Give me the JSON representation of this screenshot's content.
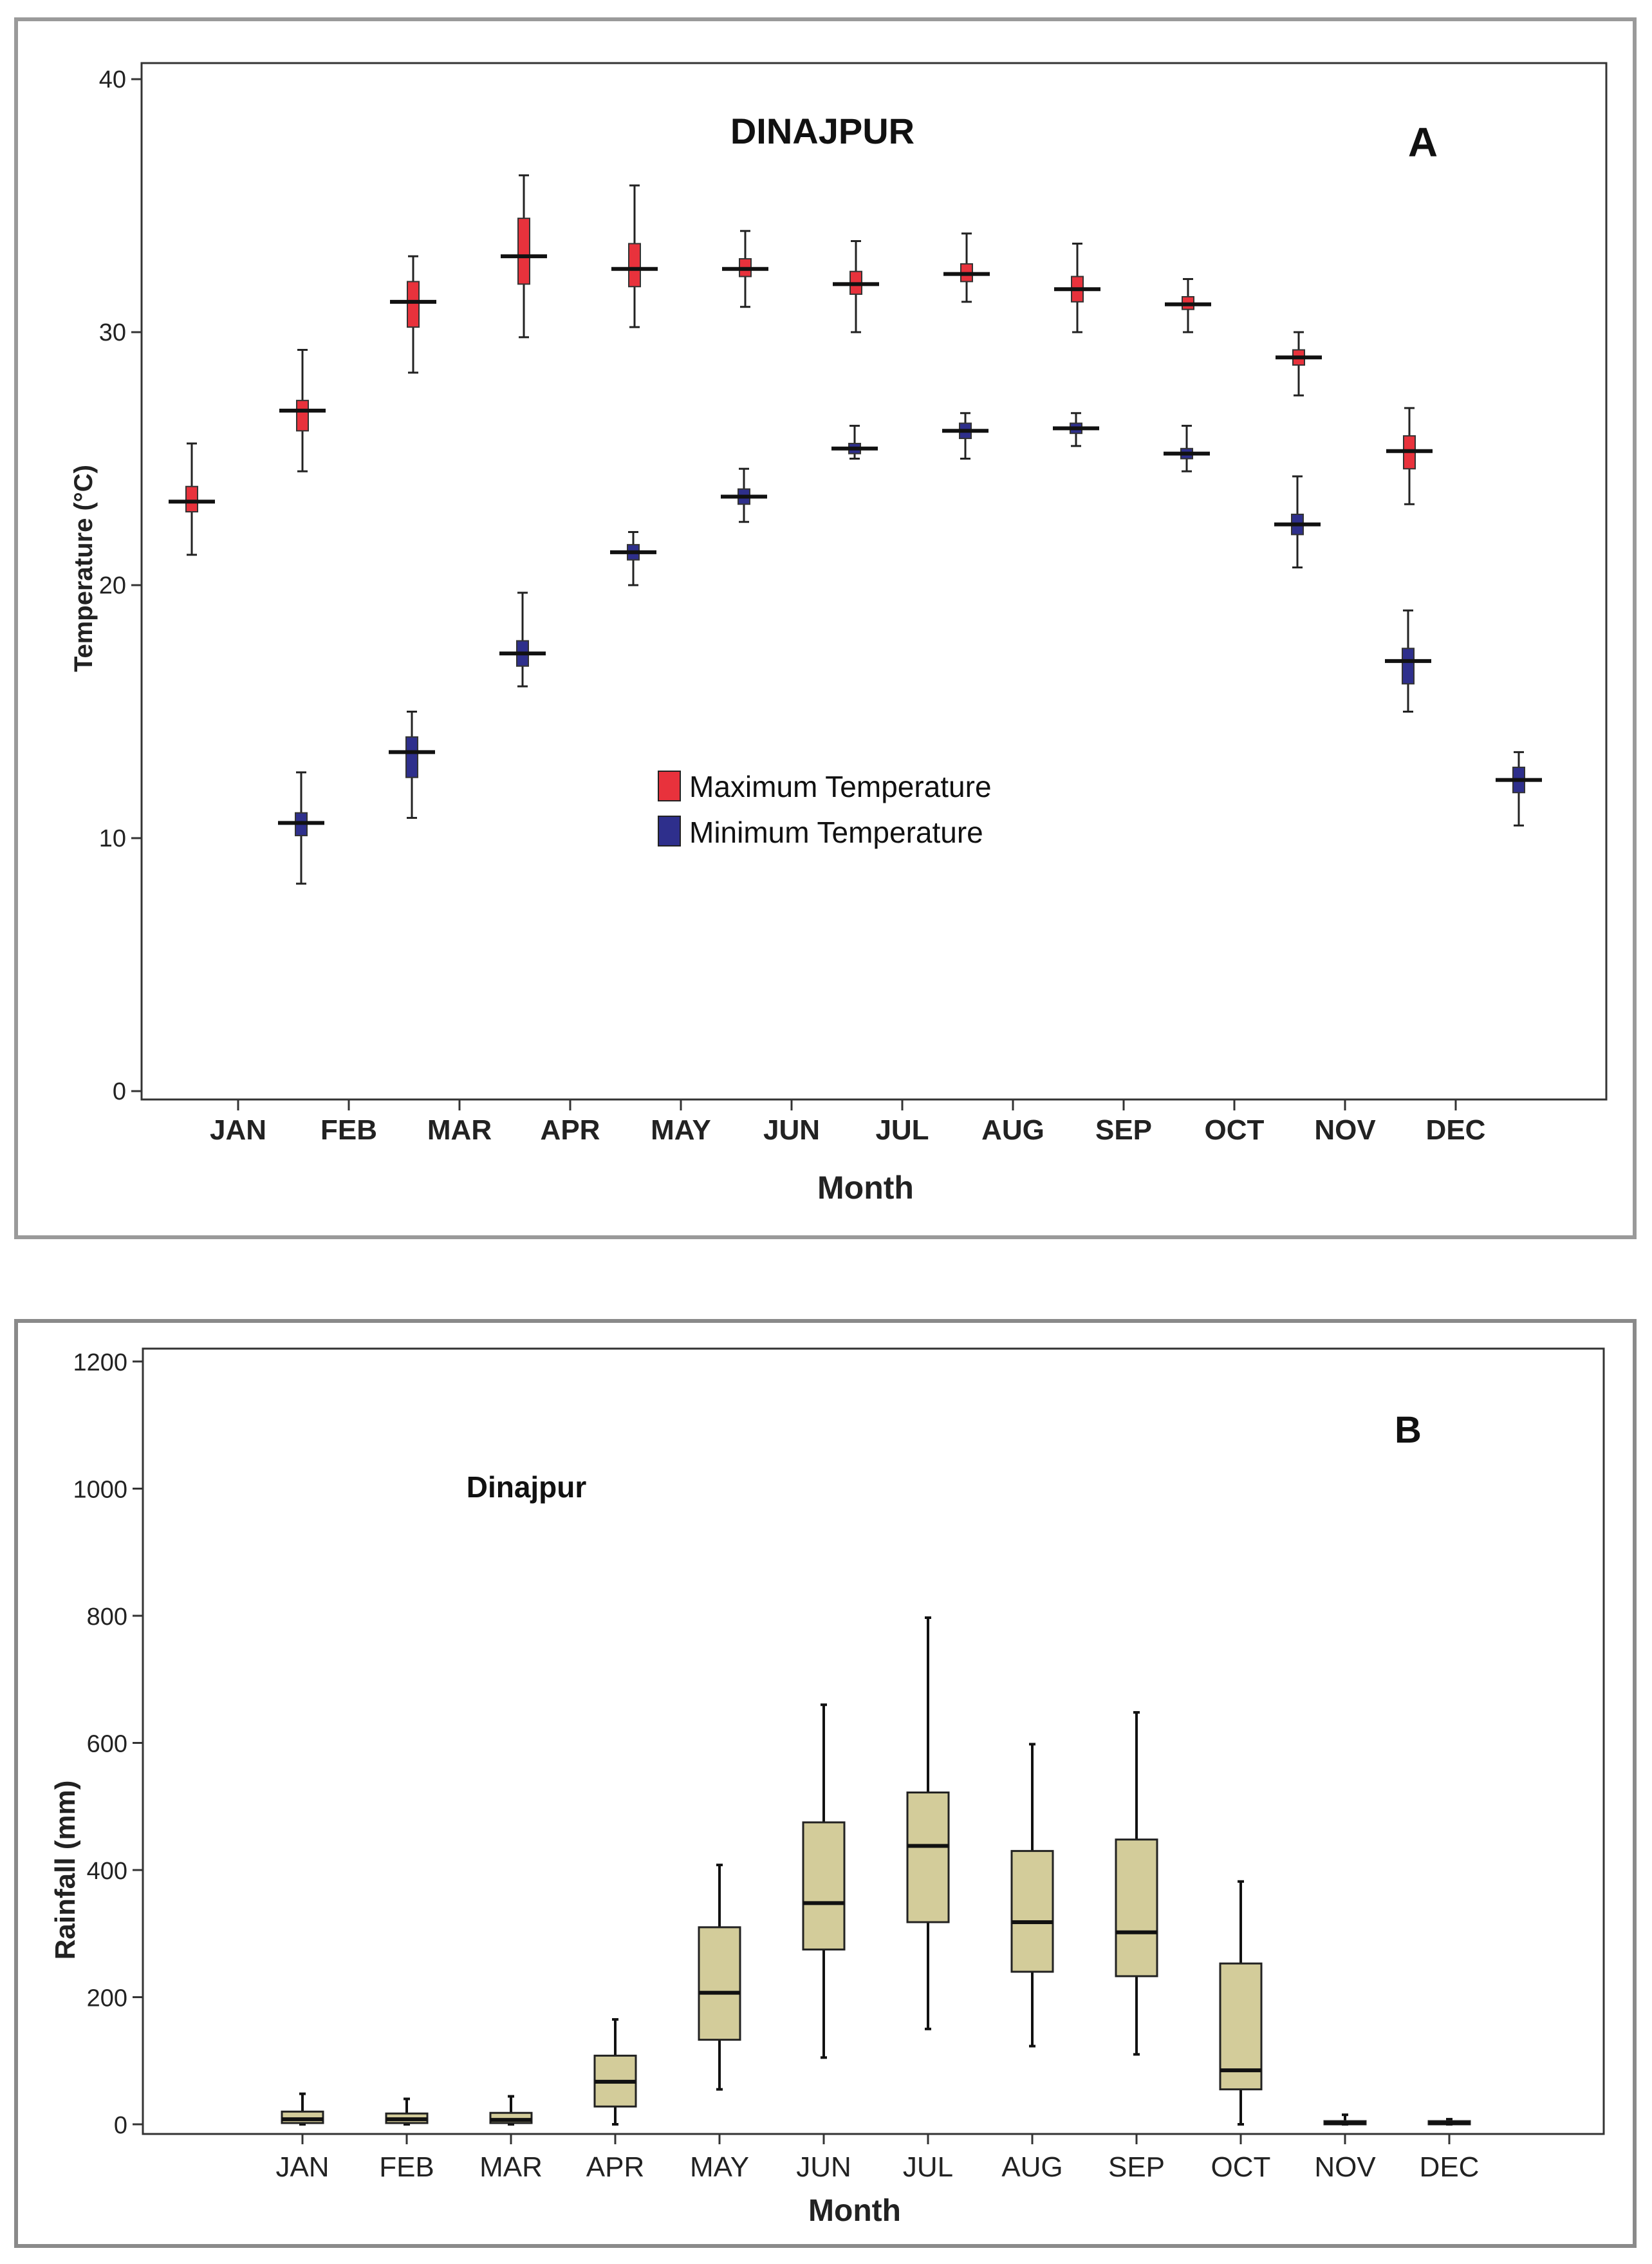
{
  "chart_data": [
    {
      "type": "boxplot",
      "panel_label": "A",
      "title": "DINAJPUR",
      "xlabel": "Month",
      "ylabel": "Temperature (°C)",
      "ylim": [
        0,
        40
      ],
      "yticks": [
        0,
        10,
        20,
        30,
        40
      ],
      "categories": [
        "JAN",
        "FEB",
        "MAR",
        "APR",
        "MAY",
        "JUN",
        "JUL",
        "AUG",
        "SEP",
        "OCT",
        "NOV",
        "DEC"
      ],
      "legend": [
        {
          "name": "Maximum Temperature",
          "color": "#e8323c"
        },
        {
          "name": "Minimum Temperature",
          "color": "#2e2f8c"
        }
      ],
      "series": [
        {
          "name": "Maximum Temperature",
          "color": "#e8323c",
          "boxes": [
            {
              "min": 21.2,
              "q1": 22.9,
              "median": 23.3,
              "q3": 23.9,
              "max": 25.6
            },
            {
              "min": 24.5,
              "q1": 26.1,
              "median": 26.9,
              "q3": 27.3,
              "max": 29.3
            },
            {
              "min": 28.4,
              "q1": 30.2,
              "median": 31.2,
              "q3": 32.0,
              "max": 33.0
            },
            {
              "min": 29.8,
              "q1": 31.9,
              "median": 33.0,
              "q3": 34.5,
              "max": 36.2
            },
            {
              "min": 30.2,
              "q1": 31.8,
              "median": 32.5,
              "q3": 33.5,
              "max": 35.8
            },
            {
              "min": 31.0,
              "q1": 32.2,
              "median": 32.5,
              "q3": 32.9,
              "max": 34.0
            },
            {
              "min": 30.0,
              "q1": 31.5,
              "median": 31.9,
              "q3": 32.4,
              "max": 33.6
            },
            {
              "min": 31.2,
              "q1": 32.0,
              "median": 32.3,
              "q3": 32.7,
              "max": 33.9
            },
            {
              "min": 30.0,
              "q1": 31.2,
              "median": 31.7,
              "q3": 32.2,
              "max": 33.5
            },
            {
              "min": 30.0,
              "q1": 30.9,
              "median": 31.1,
              "q3": 31.4,
              "max": 32.1
            },
            {
              "min": 27.5,
              "q1": 28.7,
              "median": 29.0,
              "q3": 29.3,
              "max": 30.0
            },
            {
              "min": 23.2,
              "q1": 24.6,
              "median": 25.3,
              "q3": 25.9,
              "max": 27.0
            }
          ]
        },
        {
          "name": "Minimum Temperature",
          "color": "#2e2f8c",
          "boxes": [
            {
              "min": 8.2,
              "q1": 10.1,
              "median": 10.6,
              "q3": 11.0,
              "max": 12.6
            },
            {
              "min": 10.8,
              "q1": 12.4,
              "median": 13.4,
              "q3": 14.0,
              "max": 15.0
            },
            {
              "min": 16.0,
              "q1": 16.8,
              "median": 17.3,
              "q3": 17.8,
              "max": 19.7
            },
            {
              "min": 20.0,
              "q1": 21.0,
              "median": 21.3,
              "q3": 21.6,
              "max": 22.1
            },
            {
              "min": 22.5,
              "q1": 23.2,
              "median": 23.5,
              "q3": 23.8,
              "max": 24.6
            },
            {
              "min": 25.0,
              "q1": 25.2,
              "median": 25.4,
              "q3": 25.6,
              "max": 26.3
            },
            {
              "min": 25.0,
              "q1": 25.8,
              "median": 26.1,
              "q3": 26.4,
              "max": 26.8
            },
            {
              "min": 25.5,
              "q1": 26.0,
              "median": 26.2,
              "q3": 26.4,
              "max": 26.8
            },
            {
              "min": 24.5,
              "q1": 25.0,
              "median": 25.2,
              "q3": 25.4,
              "max": 26.3
            },
            {
              "min": 20.7,
              "q1": 22.0,
              "median": 22.4,
              "q3": 22.8,
              "max": 24.3
            },
            {
              "min": 15.0,
              "q1": 16.1,
              "median": 17.0,
              "q3": 17.5,
              "max": 19.0
            },
            {
              "min": 10.5,
              "q1": 11.8,
              "median": 12.3,
              "q3": 12.8,
              "max": 13.4
            }
          ]
        }
      ]
    },
    {
      "type": "boxplot",
      "panel_label": "B",
      "title": "Dinajpur",
      "xlabel": "Month",
      "ylabel": "Rainfall (mm)",
      "ylim": [
        0,
        1200
      ],
      "yticks": [
        0,
        200,
        400,
        600,
        800,
        1000,
        1200
      ],
      "categories": [
        "JAN",
        "FEB",
        "MAR",
        "APR",
        "MAY",
        "JUN",
        "JUL",
        "AUG",
        "SEP",
        "OCT",
        "NOV",
        "DEC"
      ],
      "series": [
        {
          "name": "Rainfall",
          "color": "#d3cc9a",
          "boxes": [
            {
              "min": 0,
              "q1": 2,
              "median": 8,
              "q3": 20,
              "max": 48
            },
            {
              "min": 0,
              "q1": 2,
              "median": 8,
              "q3": 17,
              "max": 40
            },
            {
              "min": 0,
              "q1": 2,
              "median": 7,
              "q3": 18,
              "max": 44
            },
            {
              "min": 0,
              "q1": 28,
              "median": 67,
              "q3": 108,
              "max": 165
            },
            {
              "min": 55,
              "q1": 133,
              "median": 207,
              "q3": 310,
              "max": 408
            },
            {
              "min": 105,
              "q1": 275,
              "median": 348,
              "q3": 475,
              "max": 660
            },
            {
              "min": 150,
              "q1": 318,
              "median": 438,
              "q3": 522,
              "max": 797
            },
            {
              "min": 123,
              "q1": 240,
              "median": 318,
              "q3": 430,
              "max": 598
            },
            {
              "min": 110,
              "q1": 233,
              "median": 302,
              "q3": 448,
              "max": 648
            },
            {
              "min": 0,
              "q1": 55,
              "median": 85,
              "q3": 253,
              "max": 382
            },
            {
              "min": 0,
              "q1": 0,
              "median": 2,
              "q3": 5,
              "max": 15
            },
            {
              "min": 0,
              "q1": 0,
              "median": 2,
              "q3": 5,
              "max": 8
            }
          ]
        }
      ]
    }
  ]
}
